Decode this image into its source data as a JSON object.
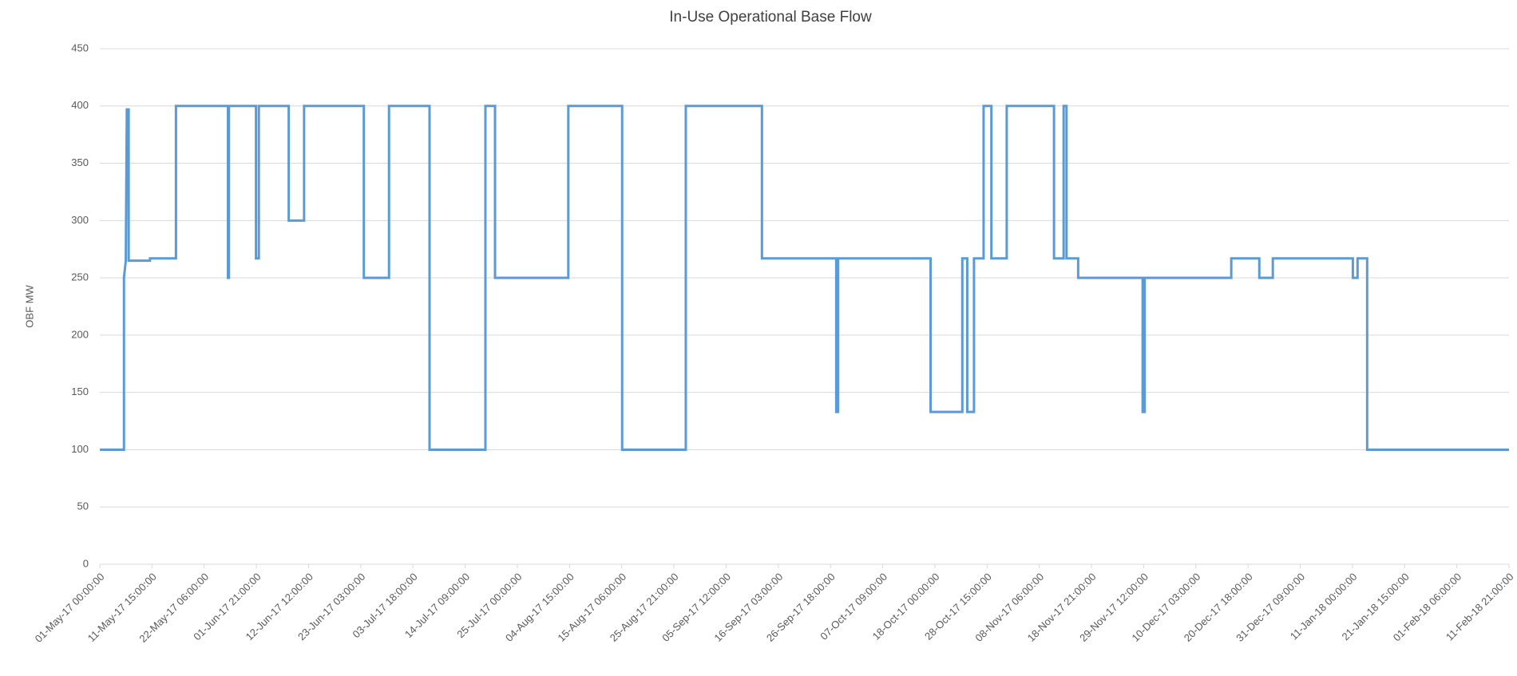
{
  "chart_data": {
    "type": "line",
    "title": "In-Use Operational Base Flow",
    "y_label": "OBF MW",
    "x": [
      "01-May-17 00:00:00",
      "05-May-17 22:00:00",
      "05-May-17 22:00:00",
      "06-May-17 07:00:00",
      "06-May-17 12:00:00",
      "06-May-17 21:00:00",
      "06-May-17 21:00:00",
      "11-May-17 05:00:00",
      "11-May-17 05:00:00",
      "16-May-17 12:00:00",
      "16-May-17 12:00:00",
      "27-May-17 02:00:00",
      "27-May-17 02:00:00",
      "27-May-17 07:00:00",
      "27-May-17 07:00:00",
      "01-Jun-17 19:00:00",
      "01-Jun-17 19:00:00",
      "02-Jun-17 09:00:00",
      "02-Jun-17 09:00:00",
      "08-Jun-17 11:00:00",
      "08-Jun-17 11:00:00",
      "11-Jun-17 14:00:00",
      "11-Jun-17 14:00:00",
      "23-Jun-17 18:00:00",
      "23-Jun-17 18:00:00",
      "28-Jun-17 21:00:00",
      "28-Jun-17 21:00:00",
      "07-Jul-17 03:00:00",
      "07-Jul-17 03:00:00",
      "18-Jul-17 12:00:00",
      "18-Jul-17 12:00:00",
      "20-Jul-17 11:00:00",
      "20-Jul-17 11:00:00",
      "04-Aug-17 09:00:00",
      "04-Aug-17 09:00:00",
      "15-Aug-17 08:00:00",
      "15-Aug-17 08:00:00",
      "28-Aug-17 07:00:00",
      "28-Aug-17 07:00:00",
      "12-Sep-17 19:00:00",
      "12-Sep-17 19:00:00",
      "27-Sep-17 22:00:00",
      "27-Sep-17 22:00:00",
      "28-Sep-17 07:00:00",
      "28-Sep-17 07:00:00",
      "17-Oct-17 03:00:00",
      "17-Oct-17 03:00:00",
      "23-Oct-17 14:00:00",
      "23-Oct-17 14:00:00",
      "24-Oct-17 14:00:00",
      "24-Oct-17 14:00:00",
      "25-Oct-17 23:00:00",
      "25-Oct-17 23:00:00",
      "27-Oct-17 22:00:00",
      "27-Oct-17 22:00:00",
      "29-Oct-17 12:00:00",
      "29-Oct-17 12:00:00",
      "01-Nov-17 15:00:00",
      "01-Nov-17 15:00:00",
      "11-Nov-17 06:00:00",
      "11-Nov-17 06:00:00",
      "13-Nov-17 05:00:00",
      "13-Nov-17 05:00:00",
      "13-Nov-17 19:00:00",
      "13-Nov-17 19:00:00",
      "16-Nov-17 04:00:00",
      "16-Nov-17 04:00:00",
      "29-Nov-17 07:00:00",
      "29-Nov-17 07:00:00",
      "29-Nov-17 17:00:00",
      "29-Nov-17 17:00:00",
      "17-Dec-17 08:00:00",
      "17-Dec-17 08:00:00",
      "23-Dec-17 01:00:00",
      "23-Dec-17 01:00:00",
      "25-Dec-17 19:00:00",
      "25-Dec-17 19:00:00",
      "11-Jan-18 02:00:00",
      "11-Jan-18 02:00:00",
      "12-Jan-18 01:00:00",
      "12-Jan-18 01:00:00",
      "14-Jan-18 00:00:00",
      "14-Jan-18 00:00:00",
      "11-Feb-18 21:00:00"
    ],
    "series": [
      {
        "name": "OBF MW",
        "color": "#5b9bd5",
        "values": [
          100,
          100,
          250,
          265,
          397,
          397,
          265,
          265,
          267,
          267,
          400,
          400,
          250,
          250,
          400,
          400,
          267,
          267,
          400,
          400,
          300,
          300,
          400,
          400,
          250,
          250,
          400,
          400,
          100,
          100,
          400,
          400,
          250,
          250,
          400,
          400,
          100,
          100,
          400,
          400,
          267,
          267,
          133,
          133,
          267,
          267,
          133,
          133,
          267,
          267,
          133,
          133,
          267,
          267,
          400,
          400,
          267,
          267,
          400,
          400,
          267,
          267,
          400,
          400,
          267,
          267,
          250,
          250,
          133,
          133,
          250,
          250,
          267,
          267,
          250,
          250,
          267,
          267,
          250,
          250,
          267,
          267,
          100,
          100
        ]
      }
    ],
    "xlim": [
      "01-May-17 00:00:00",
      "11-Feb-18 21:00:00"
    ],
    "xticks": [
      "01-May-17 00:00:00",
      "11-May-17 15:00:00",
      "22-May-17 06:00:00",
      "01-Jun-17 21:00:00",
      "12-Jun-17 12:00:00",
      "23-Jun-17 03:00:00",
      "03-Jul-17 18:00:00",
      "14-Jul-17 09:00:00",
      "25-Jul-17 00:00:00",
      "04-Aug-17 15:00:00",
      "15-Aug-17 06:00:00",
      "25-Aug-17 21:00:00",
      "05-Sep-17 12:00:00",
      "16-Sep-17 03:00:00",
      "26-Sep-17 18:00:00",
      "07-Oct-17 09:00:00",
      "18-Oct-17 00:00:00",
      "28-Oct-17 15:00:00",
      "08-Nov-17 06:00:00",
      "18-Nov-17 21:00:00",
      "29-Nov-17 12:00:00",
      "10-Dec-17 03:00:00",
      "20-Dec-17 18:00:00",
      "31-Dec-17 09:00:00",
      "11-Jan-18 00:00:00",
      "21-Jan-18 15:00:00",
      "01-Feb-18 06:00:00",
      "11-Feb-18 21:00:00"
    ],
    "ylim": [
      0,
      450
    ],
    "yticks": [
      0,
      50,
      100,
      150,
      200,
      250,
      300,
      350,
      400,
      450
    ],
    "grid": true
  }
}
